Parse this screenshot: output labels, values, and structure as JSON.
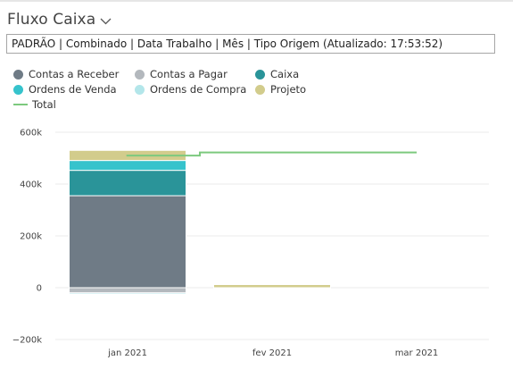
{
  "header": {
    "title": "Fluxo Caixa",
    "filter_text": "PADRÃO | Combinado | Data Trabalho | Mês | Tipo Origem (Atualizado: 17:53:52)"
  },
  "icons": {
    "title_dropdown": "chevron-down-icon"
  },
  "chart_data": {
    "type": "bar",
    "stacked": true,
    "categories": [
      "jan 2021",
      "fev 2021",
      "mar 2021"
    ],
    "ylim": [
      -200000,
      600000
    ],
    "yticks": [
      -200000,
      0,
      200000,
      400000,
      600000
    ],
    "ytick_labels": [
      "−200k",
      "0",
      "200k",
      "400k",
      "600k"
    ],
    "grid": true,
    "legend_position": "top-left",
    "series": [
      {
        "name": "Contas a Receber",
        "color": "#6f7b86",
        "kind": "bar",
        "values": [
          355000,
          0,
          0
        ]
      },
      {
        "name": "Contas a Pagar",
        "color": "#b3b8bd",
        "kind": "bar",
        "values": [
          -20000,
          -2000,
          0
        ]
      },
      {
        "name": "Caixa",
        "color": "#2a9499",
        "kind": "bar",
        "values": [
          98000,
          0,
          0
        ]
      },
      {
        "name": "Ordens de Venda",
        "color": "#36c3cc",
        "kind": "bar",
        "values": [
          38000,
          0,
          0
        ]
      },
      {
        "name": "Ordens de Compra",
        "color": "#b3e6ea",
        "kind": "bar",
        "values": [
          -5000,
          0,
          0
        ]
      },
      {
        "name": "Projeto",
        "color": "#d2cc8c",
        "kind": "bar",
        "values": [
          39000,
          12000,
          0
        ]
      },
      {
        "name": "Total",
        "color": "#7cc97e",
        "kind": "line",
        "values": [
          510000,
          522000,
          522000
        ]
      }
    ]
  }
}
